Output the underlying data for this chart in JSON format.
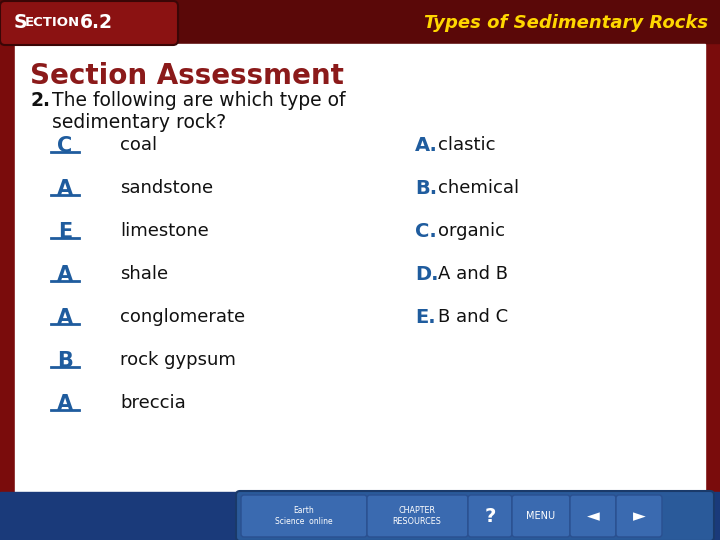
{
  "title_top": "Types of Sedimentary Rocks",
  "section_label": "SECTION 6.2",
  "section_assessment": "Section Assessment",
  "question_num": "2.",
  "question_line1": "The following are which type of",
  "question_line2": "sedimentary rock?",
  "answers": [
    {
      "letter": "C",
      "item": "coal"
    },
    {
      "letter": "A",
      "item": "sandstone"
    },
    {
      "letter": "E",
      "item": "limestone"
    },
    {
      "letter": "A",
      "item": "shale"
    },
    {
      "letter": "A",
      "item": "conglomerate"
    },
    {
      "letter": "B",
      "item": "rock gypsum"
    },
    {
      "letter": "A",
      "item": "breccia"
    }
  ],
  "choices": [
    {
      "letter": "A.",
      "text": "clastic"
    },
    {
      "letter": "B.",
      "text": "chemical"
    },
    {
      "letter": "C.",
      "text": "organic"
    },
    {
      "letter": "D.",
      "text": "A and B"
    },
    {
      "letter": "E.",
      "text": "B and C"
    }
  ],
  "bg_color": "#7A0C0C",
  "header_bar_color": "#5A0808",
  "section_box_color": "#8B1212",
  "content_bg": "#FFFFFF",
  "section_text_color": "#FFFFFF",
  "title_text_color": "#FFD700",
  "assessment_color": "#8B1A1A",
  "answer_letter_color": "#1F5C9E",
  "item_color": "#111111",
  "choice_letter_color": "#1F5C9E",
  "choice_text_color": "#111111",
  "question_color": "#111111",
  "bottom_bar_color": "#1A3A7A",
  "button_color": "#3A6AB0",
  "button_edge_color": "#2A5090"
}
